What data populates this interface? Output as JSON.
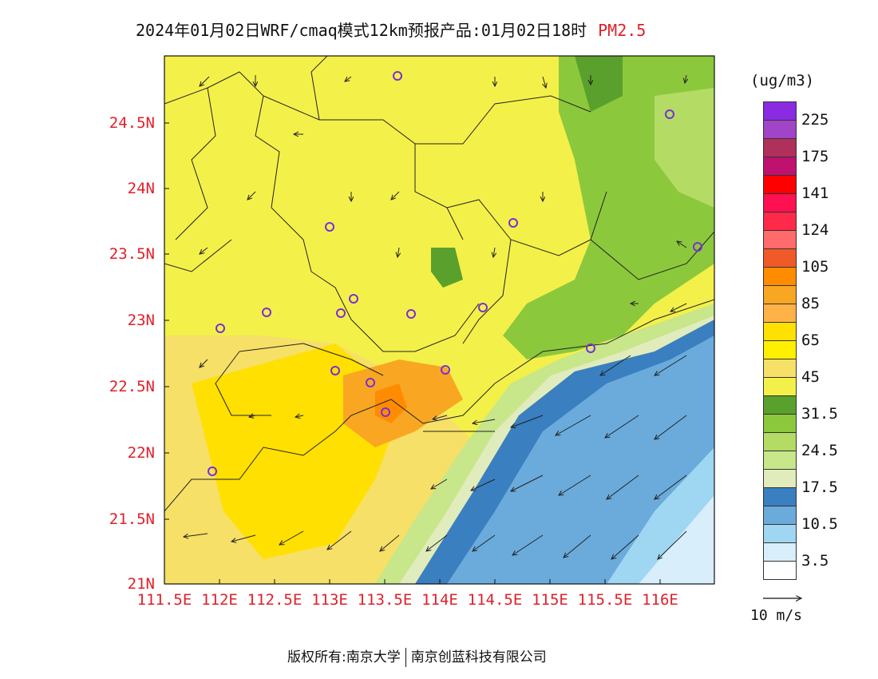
{
  "title": {
    "text": "2024年01月02日WRF/cmaq模式12km预报产品:01月02日18时",
    "variable": "PM2.5"
  },
  "colorbar": {
    "unit": "(ug/m3)",
    "labels": [
      "225",
      "175",
      "141",
      "124",
      "105",
      "85",
      "65",
      "45",
      "31.5",
      "24.5",
      "17.5",
      "10.5",
      "3.5"
    ],
    "colors": [
      "#8a2be2",
      "#a045c8",
      "#b0305c",
      "#c01070",
      "#ff0000",
      "#ff1050",
      "#ff2a4a",
      "#ff6a6a",
      "#f05a28",
      "#ff8c00",
      "#f9a623",
      "#ffb347",
      "#ffe000",
      "#ffef00",
      "#f6e067",
      "#f4f04a",
      "#5aa02c",
      "#8cc83c",
      "#b4dc64",
      "#c8e68a",
      "#e0ecbc",
      "#3a7fc0",
      "#6aabdc",
      "#9fd6f2",
      "#d8eefa",
      "#ffffff"
    ]
  },
  "vector_reference": {
    "label": "10 m/s"
  },
  "axes": {
    "lat_labels": [
      "24.5N",
      "24N",
      "23.5N",
      "23N",
      "22.5N",
      "22N",
      "21.5N",
      "21N"
    ],
    "lon_labels": [
      "111.5E",
      "112E",
      "112.5E",
      "113E",
      "113.5E",
      "114E",
      "114.5E",
      "115E",
      "115.5E",
      "116E"
    ]
  },
  "footer": {
    "left": "版权所有:南京大学",
    "right": "南京创蓝科技有限公司"
  }
}
